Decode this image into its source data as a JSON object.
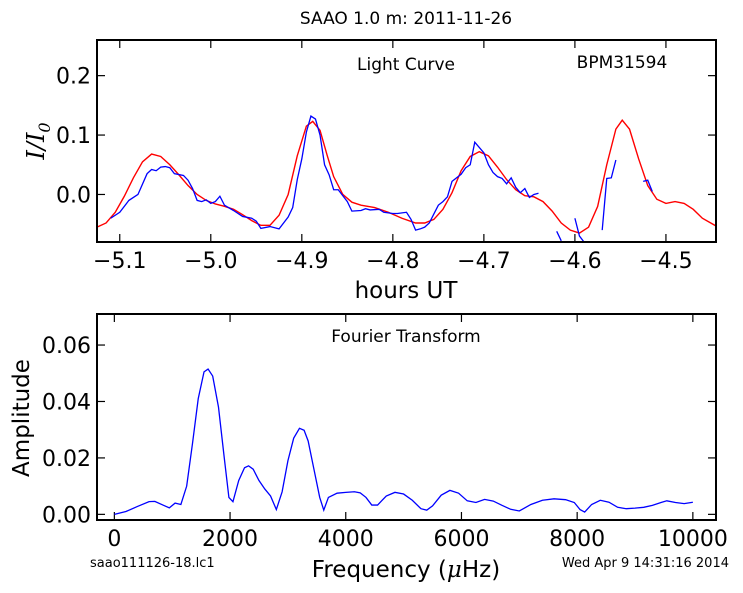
{
  "figure": {
    "title": "SAAO 1.0 m:  2011-11-26",
    "footer_left": "saao111126-18.lc1",
    "footer_right": "Wed Apr  9 14:31:16 2014"
  },
  "chart_data": [
    {
      "type": "line",
      "annotation_left": "Light Curve",
      "annotation_right": "BPM31594",
      "xlabel": "hours UT",
      "ylabel_main": "I/I",
      "ylabel_sub": "0",
      "xlim": [
        -5.125,
        -4.445
      ],
      "ylim": [
        -0.08,
        0.26
      ],
      "xticks": [
        -5.1,
        -5.0,
        -4.9,
        -4.8,
        -4.7,
        -4.6,
        -4.5
      ],
      "xtick_labels": [
        "−5.1",
        "−5.0",
        "−4.9",
        "−4.8",
        "−4.7",
        "−4.6",
        "−4.5"
      ],
      "yticks": [
        0.0,
        0.1,
        0.2
      ],
      "ytick_labels": [
        "0.0",
        "0.1",
        "0.2"
      ],
      "colors": {
        "data": "#0000ff",
        "model": "#ff0000"
      },
      "series": [
        {
          "role": "data",
          "segments": [
            [
              [
                -5.11,
                -0.04
              ],
              [
                -5.1,
                -0.03
              ],
              [
                -5.09,
                -0.01
              ],
              [
                -5.08,
                0.0
              ],
              [
                -5.07,
                0.035
              ],
              [
                -5.065,
                0.042
              ],
              [
                -5.06,
                0.04
              ],
              [
                -5.055,
                0.046
              ],
              [
                -5.05,
                0.047
              ],
              [
                -5.045,
                0.045
              ],
              [
                -5.04,
                0.035
              ],
              [
                -5.03,
                0.032
              ],
              [
                -5.025,
                0.024
              ],
              [
                -5.02,
                0.01
              ],
              [
                -5.015,
                -0.01
              ],
              [
                -5.01,
                -0.012
              ],
              [
                -5.005,
                -0.009
              ],
              [
                -5.0,
                -0.015
              ],
              [
                -4.995,
                -0.012
              ],
              [
                -4.99,
                -0.003
              ],
              [
                -4.985,
                -0.018
              ],
              [
                -4.975,
                -0.027
              ],
              [
                -4.965,
                -0.037
              ],
              [
                -4.955,
                -0.04
              ],
              [
                -4.95,
                -0.045
              ],
              [
                -4.945,
                -0.057
              ],
              [
                -4.935,
                -0.054
              ],
              [
                -4.925,
                -0.058
              ],
              [
                -4.915,
                -0.038
              ],
              [
                -4.91,
                -0.022
              ],
              [
                -4.905,
                0.025
              ],
              [
                -4.9,
                0.06
              ],
              [
                -4.895,
                0.105
              ],
              [
                -4.89,
                0.132
              ],
              [
                -4.885,
                0.127
              ],
              [
                -4.88,
                0.1
              ],
              [
                -4.875,
                0.05
              ],
              [
                -4.87,
                0.033
              ],
              [
                -4.865,
                0.008
              ],
              [
                -4.86,
                0.008
              ],
              [
                -4.85,
                -0.012
              ],
              [
                -4.845,
                -0.028
              ],
              [
                -4.835,
                -0.027
              ],
              [
                -4.83,
                -0.024
              ],
              [
                -4.825,
                -0.026
              ],
              [
                -4.815,
                -0.025
              ],
              [
                -4.81,
                -0.03
              ],
              [
                -4.8,
                -0.032
              ],
              [
                -4.795,
                -0.032
              ],
              [
                -4.785,
                -0.03
              ],
              [
                -4.78,
                -0.042
              ],
              [
                -4.775,
                -0.06
              ],
              [
                -4.77,
                -0.058
              ],
              [
                -4.765,
                -0.055
              ],
              [
                -4.76,
                -0.048
              ],
              [
                -4.755,
                -0.033
              ],
              [
                -4.75,
                -0.018
              ],
              [
                -4.745,
                -0.012
              ],
              [
                -4.74,
                -0.004
              ],
              [
                -4.735,
                0.022
              ],
              [
                -4.725,
                0.034
              ],
              [
                -4.72,
                0.045
              ],
              [
                -4.715,
                0.05
              ],
              [
                -4.71,
                0.088
              ],
              [
                -4.7,
                0.07
              ],
              [
                -4.695,
                0.05
              ],
              [
                -4.69,
                0.037
              ],
              [
                -4.685,
                0.03
              ],
              [
                -4.68,
                0.027
              ],
              [
                -4.675,
                0.018
              ],
              [
                -4.67,
                0.028
              ],
              [
                -4.665,
                0.012
              ],
              [
                -4.66,
                0.003
              ],
              [
                -4.655,
                0.01
              ],
              [
                -4.65,
                -0.005
              ],
              [
                -4.645,
                0.0
              ],
              [
                -4.64,
                0.002
              ]
            ],
            [
              [
                -4.62,
                -0.062
              ],
              [
                -4.615,
                -0.078
              ]
            ],
            [
              [
                -4.6,
                -0.04
              ],
              [
                -4.595,
                -0.07
              ],
              [
                -4.59,
                -0.08
              ]
            ],
            [
              [
                -4.57,
                -0.06
              ],
              [
                -4.565,
                0.027
              ],
              [
                -4.56,
                0.028
              ],
              [
                -4.555,
                0.058
              ]
            ],
            [
              [
                -4.525,
                0.022
              ],
              [
                -4.52,
                0.024
              ],
              [
                -4.515,
                0.005
              ]
            ]
          ]
        },
        {
          "role": "model",
          "points": [
            [
              -5.125,
              -0.055
            ],
            [
              -5.115,
              -0.048
            ],
            [
              -5.105,
              -0.03
            ],
            [
              -5.095,
              -0.003
            ],
            [
              -5.085,
              0.028
            ],
            [
              -5.075,
              0.055
            ],
            [
              -5.065,
              0.068
            ],
            [
              -5.055,
              0.064
            ],
            [
              -5.045,
              0.05
            ],
            [
              -5.035,
              0.033
            ],
            [
              -5.025,
              0.015
            ],
            [
              -5.015,
              0.0
            ],
            [
              -5.005,
              -0.01
            ],
            [
              -4.995,
              -0.016
            ],
            [
              -4.985,
              -0.02
            ],
            [
              -4.975,
              -0.025
            ],
            [
              -4.965,
              -0.034
            ],
            [
              -4.955,
              -0.044
            ],
            [
              -4.945,
              -0.052
            ],
            [
              -4.935,
              -0.052
            ],
            [
              -4.925,
              -0.035
            ],
            [
              -4.915,
              0.0
            ],
            [
              -4.905,
              0.065
            ],
            [
              -4.895,
              0.115
            ],
            [
              -4.888,
              0.123
            ],
            [
              -4.88,
              0.108
            ],
            [
              -4.872,
              0.065
            ],
            [
              -4.865,
              0.03
            ],
            [
              -4.855,
              0.0
            ],
            [
              -4.845,
              -0.013
            ],
            [
              -4.835,
              -0.018
            ],
            [
              -4.82,
              -0.022
            ],
            [
              -4.805,
              -0.03
            ],
            [
              -4.79,
              -0.04
            ],
            [
              -4.775,
              -0.048
            ],
            [
              -4.765,
              -0.048
            ],
            [
              -4.755,
              -0.042
            ],
            [
              -4.745,
              -0.025
            ],
            [
              -4.735,
              0.003
            ],
            [
              -4.725,
              0.04
            ],
            [
              -4.715,
              0.064
            ],
            [
              -4.705,
              0.072
            ],
            [
              -4.695,
              0.065
            ],
            [
              -4.685,
              0.046
            ],
            [
              -4.675,
              0.025
            ],
            [
              -4.665,
              0.008
            ],
            [
              -4.655,
              -0.002
            ],
            [
              -4.645,
              -0.004
            ],
            [
              -4.635,
              -0.012
            ],
            [
              -4.625,
              -0.028
            ],
            [
              -4.615,
              -0.048
            ],
            [
              -4.605,
              -0.06
            ],
            [
              -4.595,
              -0.065
            ],
            [
              -4.585,
              -0.055
            ],
            [
              -4.575,
              -0.02
            ],
            [
              -4.565,
              0.05
            ],
            [
              -4.555,
              0.11
            ],
            [
              -4.548,
              0.125
            ],
            [
              -4.54,
              0.11
            ],
            [
              -4.53,
              0.06
            ],
            [
              -4.52,
              0.015
            ],
            [
              -4.51,
              -0.008
            ],
            [
              -4.5,
              -0.015
            ],
            [
              -4.49,
              -0.012
            ],
            [
              -4.48,
              -0.015
            ],
            [
              -4.47,
              -0.025
            ],
            [
              -4.46,
              -0.04
            ],
            [
              -4.445,
              -0.053
            ]
          ]
        }
      ]
    },
    {
      "type": "line",
      "annotation": "Fourier Transform",
      "xlabel_main": "Frequency (",
      "xlabel_mu": "μ",
      "xlabel_end": "Hz)",
      "ylabel": "Amplitude",
      "xlim": [
        -300,
        10400
      ],
      "ylim": [
        -0.002,
        0.071
      ],
      "xticks": [
        0,
        2000,
        4000,
        6000,
        8000,
        10000
      ],
      "xtick_labels": [
        "0",
        "2000",
        "4000",
        "6000",
        "8000",
        "10000"
      ],
      "yticks": [
        0.0,
        0.02,
        0.04,
        0.06
      ],
      "ytick_labels": [
        "0.00",
        "0.02",
        "0.04",
        "0.06"
      ],
      "colors": {
        "line": "#0000ff"
      },
      "series": [
        {
          "role": "spectrum",
          "points": [
            [
              0,
              0.0
            ],
            [
              200,
              0.001
            ],
            [
              400,
              0.0028
            ],
            [
              600,
              0.0045
            ],
            [
              700,
              0.0046
            ],
            [
              850,
              0.0032
            ],
            [
              950,
              0.0023
            ],
            [
              1050,
              0.004
            ],
            [
              1150,
              0.0035
            ],
            [
              1250,
              0.01
            ],
            [
              1350,
              0.025
            ],
            [
              1450,
              0.041
            ],
            [
              1550,
              0.0505
            ],
            [
              1620,
              0.0515
            ],
            [
              1700,
              0.049
            ],
            [
              1800,
              0.038
            ],
            [
              1900,
              0.02
            ],
            [
              1980,
              0.006
            ],
            [
              2050,
              0.0045
            ],
            [
              2150,
              0.012
            ],
            [
              2250,
              0.0165
            ],
            [
              2320,
              0.0172
            ],
            [
              2400,
              0.016
            ],
            [
              2500,
              0.012
            ],
            [
              2600,
              0.009
            ],
            [
              2700,
              0.0065
            ],
            [
              2800,
              0.0017
            ],
            [
              2900,
              0.008
            ],
            [
              3000,
              0.019
            ],
            [
              3100,
              0.027
            ],
            [
              3200,
              0.0305
            ],
            [
              3280,
              0.0298
            ],
            [
              3350,
              0.026
            ],
            [
              3450,
              0.016
            ],
            [
              3550,
              0.006
            ],
            [
              3620,
              0.0015
            ],
            [
              3700,
              0.006
            ],
            [
              3850,
              0.0075
            ],
            [
              4000,
              0.0078
            ],
            [
              4150,
              0.008
            ],
            [
              4250,
              0.0076
            ],
            [
              4350,
              0.006
            ],
            [
              4450,
              0.0033
            ],
            [
              4550,
              0.0033
            ],
            [
              4700,
              0.0065
            ],
            [
              4850,
              0.0078
            ],
            [
              5000,
              0.0072
            ],
            [
              5150,
              0.005
            ],
            [
              5300,
              0.002
            ],
            [
              5400,
              0.0015
            ],
            [
              5500,
              0.003
            ],
            [
              5650,
              0.0068
            ],
            [
              5800,
              0.0085
            ],
            [
              5950,
              0.0075
            ],
            [
              6100,
              0.0048
            ],
            [
              6250,
              0.0042
            ],
            [
              6400,
              0.0053
            ],
            [
              6550,
              0.0047
            ],
            [
              6700,
              0.0032
            ],
            [
              6850,
              0.0018
            ],
            [
              7000,
              0.0012
            ],
            [
              7200,
              0.0035
            ],
            [
              7400,
              0.005
            ],
            [
              7600,
              0.0055
            ],
            [
              7800,
              0.0052
            ],
            [
              7950,
              0.0042
            ],
            [
              8050,
              0.0017
            ],
            [
              8130,
              0.0008
            ],
            [
              8250,
              0.0035
            ],
            [
              8400,
              0.005
            ],
            [
              8550,
              0.0043
            ],
            [
              8700,
              0.0025
            ],
            [
              8850,
              0.002
            ],
            [
              9000,
              0.0022
            ],
            [
              9150,
              0.0025
            ],
            [
              9300,
              0.0032
            ],
            [
              9450,
              0.0042
            ],
            [
              9550,
              0.0048
            ],
            [
              9700,
              0.0042
            ],
            [
              9850,
              0.0038
            ],
            [
              10000,
              0.0043
            ]
          ]
        }
      ]
    }
  ]
}
